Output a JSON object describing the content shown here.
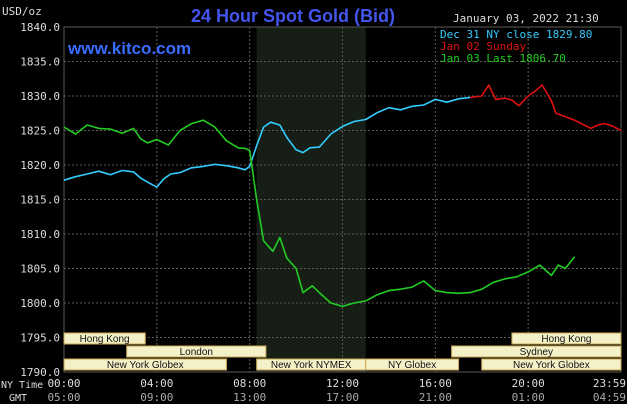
{
  "header": {
    "title": "24 Hour Spot Gold (Bid)",
    "unit_label": "USD/oz",
    "date_time": "January 03, 2022 21:30",
    "website": "www.kitco.com"
  },
  "legend": [
    {
      "label": "Dec 31 NY close 1829.80",
      "color": "#33ccff"
    },
    {
      "label": "Jan 02 Sunday",
      "color": "#e01010"
    },
    {
      "label": "Jan 03 Last 1806.70",
      "color": "#22cc22"
    }
  ],
  "axis_labels": {
    "ny_time": "NY Time",
    "gmt": "GMT"
  },
  "markets": [
    {
      "label": "Hong Kong",
      "start": 0,
      "end": 3.5
    },
    {
      "label": "London",
      "start": 2.7,
      "end": 8.7
    },
    {
      "label": "New York Globex",
      "start": 0,
      "end": 7.0
    },
    {
      "label": "New York NYMEX",
      "start": 8.3,
      "end": 13.0
    },
    {
      "label": "NY Globex",
      "start": 13.0,
      "end": 17.0
    },
    {
      "label": "Sydney",
      "start": 16.7,
      "end": 24.0
    },
    {
      "label": "Hong Kong",
      "start": 19.3,
      "end": 24.0
    },
    {
      "label": "New York Globex",
      "start": 18.0,
      "end": 24.0
    }
  ],
  "colors": {
    "background": "#000000",
    "grid": "#5a5a5a",
    "text": "#dddddd",
    "title": "#4455ee",
    "website": "#3a6cff",
    "market_box_fill": "#f4f0c8",
    "market_box_stroke": "#c8a850",
    "market_label": "#111111",
    "nymex_shade": "#161e16"
  },
  "chart_data": {
    "type": "line",
    "title": "24 Hour Spot Gold (Bid)",
    "ylabel": "USD/oz",
    "ylim": [
      1790,
      1840
    ],
    "yticks": [
      "1840.0",
      "1835.0",
      "1830.0",
      "1825.0",
      "1820.0",
      "1815.0",
      "1810.0",
      "1805.0",
      "1800.0",
      "1795.0",
      "1790.0"
    ],
    "xlim": [
      0,
      24
    ],
    "xticks_ny": [
      "00:00",
      "04:00",
      "08:00",
      "12:00",
      "16:00",
      "20:00",
      "23:59"
    ],
    "xticks_gmt": [
      "05:00",
      "09:00",
      "13:00",
      "17:00",
      "21:00",
      "01:00",
      "04:59"
    ],
    "shaded_session": {
      "label": "New York NYMEX",
      "start": 8.3,
      "end": 13.0
    },
    "series": [
      {
        "name": "Dec 31 NY close 1829.80",
        "color": "#33ccff",
        "x": [
          0,
          0.5,
          1,
          1.5,
          2,
          2.5,
          3,
          3.3,
          3.6,
          4,
          4.3,
          4.6,
          5,
          5.5,
          6,
          6.5,
          7,
          7.5,
          7.8,
          8,
          8.3,
          8.6,
          8.9,
          9.3,
          9.6,
          10,
          10.3,
          10.6,
          11,
          11.5,
          12,
          12.5,
          13,
          13.5,
          14,
          14.5,
          15,
          15.5,
          16,
          16.5,
          17,
          17.5
        ],
        "y": [
          1817.8,
          1818.3,
          1818.7,
          1819.1,
          1818.6,
          1819.2,
          1819.0,
          1818.1,
          1817.5,
          1816.8,
          1818.0,
          1818.7,
          1818.9,
          1819.6,
          1819.8,
          1820.1,
          1819.9,
          1819.6,
          1819.3,
          1819.8,
          1822.8,
          1825.5,
          1826.2,
          1825.8,
          1824.0,
          1822.2,
          1821.8,
          1822.5,
          1822.6,
          1824.5,
          1825.6,
          1826.3,
          1826.6,
          1827.6,
          1828.3,
          1828.0,
          1828.5,
          1828.7,
          1829.5,
          1829.1,
          1829.6,
          1829.8
        ]
      },
      {
        "name": "Jan 02 Sunday",
        "color": "#e01010",
        "x": [
          17.5,
          18,
          18.3,
          18.6,
          19,
          19.3,
          19.6,
          20,
          20.3,
          20.6,
          21,
          21.2,
          21.6,
          22,
          22.3,
          22.7,
          23,
          23.3,
          23.6,
          24
        ],
        "y": [
          1829.8,
          1830.0,
          1831.6,
          1829.5,
          1829.7,
          1829.4,
          1828.6,
          1830.0,
          1830.7,
          1831.6,
          1829.3,
          1827.5,
          1827.0,
          1826.5,
          1826.0,
          1825.3,
          1825.8,
          1826.0,
          1825.7,
          1825.0
        ]
      },
      {
        "name": "Jan 03 Last 1806.70",
        "color": "#22cc22",
        "x": [
          0,
          0.5,
          1,
          1.5,
          2,
          2.5,
          3,
          3.3,
          3.6,
          4,
          4.5,
          5,
          5.5,
          6,
          6.5,
          7,
          7.5,
          7.8,
          8,
          8.3,
          8.6,
          9,
          9.3,
          9.6,
          10,
          10.3,
          10.7,
          11,
          11.5,
          12,
          12.5,
          13,
          13.5,
          14,
          14.5,
          15,
          15.5,
          16,
          16.5,
          17,
          17.5,
          18,
          18.5,
          19,
          19.5,
          20,
          20.5,
          21,
          21.3,
          21.6,
          22
        ],
        "y": [
          1825.5,
          1824.5,
          1825.8,
          1825.3,
          1825.2,
          1824.6,
          1825.3,
          1823.8,
          1823.2,
          1823.7,
          1822.9,
          1825.0,
          1826.0,
          1826.5,
          1825.5,
          1823.5,
          1822.5,
          1822.4,
          1822.1,
          1815.0,
          1809.0,
          1807.5,
          1809.5,
          1806.5,
          1805.0,
          1801.5,
          1802.5,
          1801.5,
          1800.0,
          1799.5,
          1800.0,
          1800.3,
          1801.2,
          1801.8,
          1802.0,
          1802.3,
          1803.2,
          1801.8,
          1801.5,
          1801.4,
          1801.5,
          1802.0,
          1803.0,
          1803.5,
          1803.8,
          1804.5,
          1805.5,
          1804.0,
          1805.5,
          1805.0,
          1806.7
        ]
      }
    ],
    "grid": true
  }
}
